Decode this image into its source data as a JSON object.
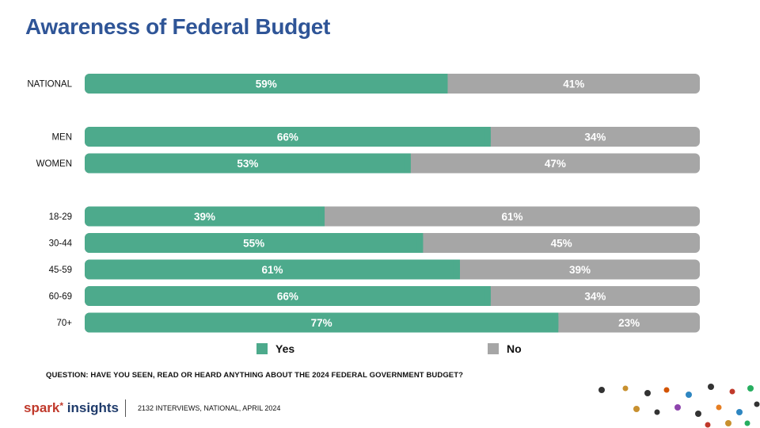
{
  "title": "Awareness of Federal Budget",
  "colors": {
    "yes": "#4daa8c",
    "no": "#a6a6a6",
    "title": "#2f5597"
  },
  "legend": {
    "yes": "Yes",
    "no": "No"
  },
  "question": "QUESTION: HAVE YOU SEEN, READ OR HEARD ANYTHING ABOUT THE 2024 FEDERAL GOVERNMENT BUDGET?",
  "footer": {
    "brand_a": "spark",
    "brand_b": "insights",
    "note": "2132 INTERVIEWS, NATIONAL, APRIL 2024"
  },
  "chart_data": {
    "type": "bar",
    "orientation": "horizontal-stacked-100",
    "categories": [
      "NATIONAL",
      "MEN",
      "WOMEN",
      "18-29",
      "30-44",
      "45-59",
      "60-69",
      "70+"
    ],
    "groups": [
      [
        "NATIONAL"
      ],
      [
        "MEN",
        "WOMEN"
      ],
      [
        "18-29",
        "30-44",
        "45-59",
        "60-69",
        "70+"
      ]
    ],
    "series": [
      {
        "name": "Yes",
        "values": [
          59,
          66,
          53,
          39,
          55,
          61,
          66,
          77
        ]
      },
      {
        "name": "No",
        "values": [
          41,
          34,
          47,
          61,
          45,
          39,
          34,
          23
        ]
      }
    ],
    "unit": "%",
    "legend_position": "bottom",
    "grid": false
  }
}
